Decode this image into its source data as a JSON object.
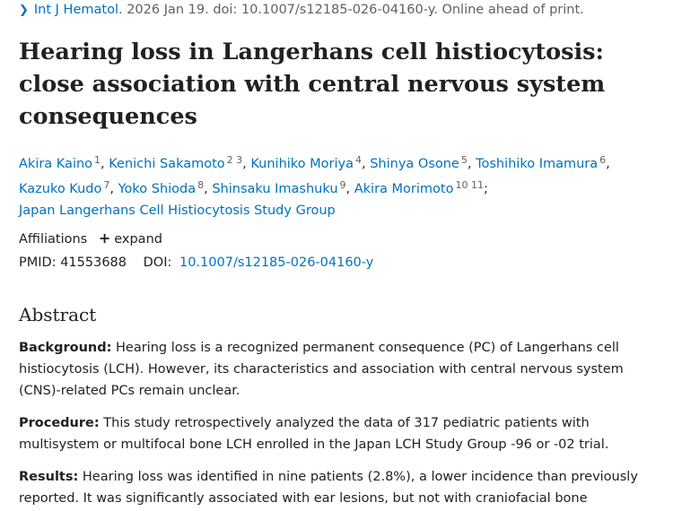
{
  "citation": {
    "journal": "Int J Hematol.",
    "details": "2026 Jan 19. doi: 10.1007/s12185-026-04160-y. Online ahead of print."
  },
  "title": "Hearing loss in Langerhans cell histiocytosis: close association with central nervous system consequences",
  "authors": [
    {
      "name": "Akira Kaino",
      "affs": "1"
    },
    {
      "name": "Kenichi Sakamoto",
      "affs": "2 3"
    },
    {
      "name": "Kunihiko Moriya",
      "affs": "4"
    },
    {
      "name": "Shinya Osone",
      "affs": "5"
    },
    {
      "name": "Toshihiko Imamura",
      "affs": "6"
    },
    {
      "name": "Kazuko Kudo",
      "affs": "7"
    },
    {
      "name": "Yoko Shioda",
      "affs": "8"
    },
    {
      "name": "Shinsaku Imashuku",
      "affs": "9"
    },
    {
      "name": "Akira Morimoto",
      "affs": "10 11"
    }
  ],
  "group": "Japan Langerhans Cell Histiocytosis Study Group",
  "affiliations": {
    "label": "Affiliations",
    "expand_label": "expand"
  },
  "ids": {
    "pmid_label": "PMID:",
    "pmid": "41553688",
    "doi_label": "DOI:",
    "doi": "10.1007/s12185-026-04160-y"
  },
  "abstract": {
    "heading": "Abstract",
    "background_label": "Background:",
    "background_text": "Hearing loss is a recognized permanent consequence (PC) of Langerhans cell histiocytosis (LCH). However, its characteristics and association with central nervous system (CNS)-related PCs remain unclear.",
    "procedure_label": "Procedure:",
    "procedure_text": "This study retrospectively analyzed the data of 317 pediatric patients with multisystem or multifocal bone LCH enrolled in the Japan LCH Study Group -96 or -02 trial.",
    "results_label": "Results:",
    "results_text": "Hearing loss was identified in nine patients (2.8%), a lower incidence than previously reported. It was significantly associated with ear lesions, but not with craniofacial bone involvement at"
  },
  "colors": {
    "link": "#0071bc",
    "text": "#212121",
    "muted": "#5b616b"
  }
}
